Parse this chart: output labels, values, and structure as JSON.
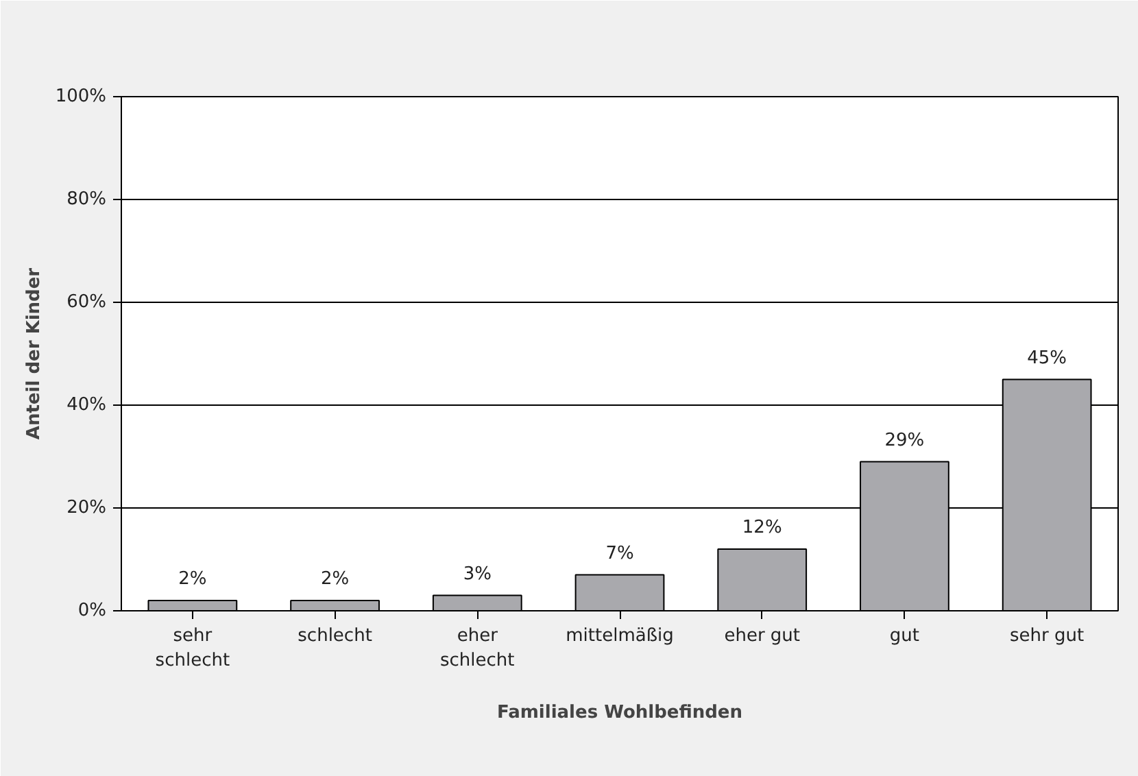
{
  "chart_data": {
    "type": "bar",
    "xlabel": "Familiales Wohlbefinden",
    "ylabel": "Anteil der Kinder",
    "categories": [
      "sehr schlecht",
      "schlecht",
      "eher schlecht",
      "mittelmäßig",
      "eher gut",
      "gut",
      "sehr gut"
    ],
    "values": [
      2,
      2,
      3,
      7,
      12,
      29,
      45
    ],
    "value_labels": [
      "2%",
      "2%",
      "3%",
      "7%",
      "12%",
      "29%",
      "45%"
    ],
    "color": "#a9a9ad",
    "ylim": [
      0,
      100
    ],
    "yticks": [
      {
        "value": 0,
        "label": "0%"
      },
      {
        "value": 20,
        "label": "20%"
      },
      {
        "value": 40,
        "label": "40%"
      },
      {
        "value": 60,
        "label": "60%"
      },
      {
        "value": 80,
        "label": "80%"
      },
      {
        "value": 100,
        "label": "100%"
      }
    ],
    "grid": "y"
  }
}
